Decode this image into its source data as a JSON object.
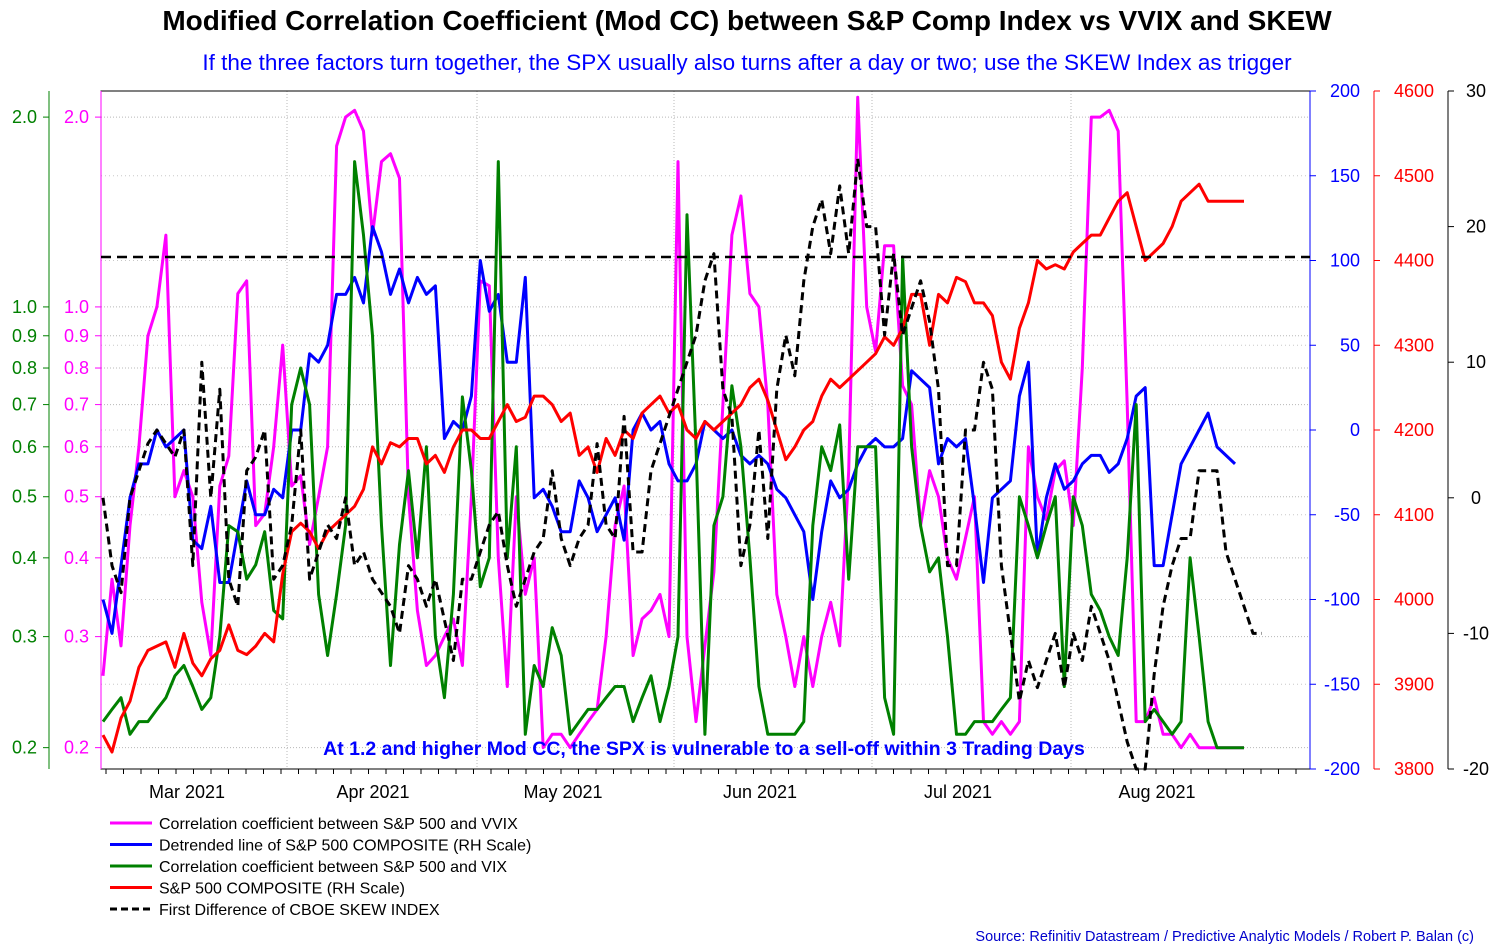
{
  "chart_data": {
    "type": "line",
    "title": "Modified Correlation Coefficient (Mod CC) between S&P Comp Index vs VVIX and SKEW",
    "subtitle": "If the three factors turn together, the SPX usually also turns after a day or two; use the SKEW Index as trigger",
    "annotation": "At 1.2 and higher Mod CC, the SPX is vulnerable to a sell-off within 3 Trading Days",
    "source": "Source: Refinitiv Datastream / Predictive Analytic Models / Robert P. Balan (c)",
    "x_labels": [
      "Mar 2021",
      "Apr 2021",
      "May 2021",
      "Jun 2021",
      "Jul 2021",
      "Aug 2021"
    ],
    "n_points": 128,
    "threshold": {
      "value": 1.2,
      "axis": "corr",
      "style": "dashed",
      "color": "#000000"
    },
    "axes": {
      "corr_green": {
        "side": "left",
        "scale": "log",
        "range": [
          0.185,
          2.2
        ],
        "color": "#008000",
        "ticks": [
          {
            "value": 2.0,
            "label": "2.0"
          },
          {
            "value": 1.0,
            "label": "1.0"
          },
          {
            "value": 0.9,
            "label": "0.9"
          },
          {
            "value": 0.8,
            "label": "0.8"
          },
          {
            "value": 0.7,
            "label": "0.7"
          },
          {
            "value": 0.6,
            "label": "0.6"
          },
          {
            "value": 0.5,
            "label": "0.5"
          },
          {
            "value": 0.4,
            "label": "0.4"
          },
          {
            "value": 0.3,
            "label": "0.3"
          },
          {
            "value": 0.2,
            "label": "0.2"
          }
        ]
      },
      "corr_magenta": {
        "side": "left",
        "scale": "log",
        "range": [
          0.185,
          2.2
        ],
        "color": "#ff00ff",
        "ticks": [
          {
            "value": 2.0,
            "label": "2.0"
          },
          {
            "value": 1.0,
            "label": "1.0"
          },
          {
            "value": 0.9,
            "label": "0.9"
          },
          {
            "value": 0.8,
            "label": "0.8"
          },
          {
            "value": 0.7,
            "label": "0.7"
          },
          {
            "value": 0.6,
            "label": "0.6"
          },
          {
            "value": 0.5,
            "label": "0.5"
          },
          {
            "value": 0.4,
            "label": "0.4"
          },
          {
            "value": 0.3,
            "label": "0.3"
          },
          {
            "value": 0.2,
            "label": "0.2"
          }
        ]
      },
      "detrended": {
        "side": "right",
        "scale": "linear",
        "range": [
          -200,
          200
        ],
        "color": "#0000ff",
        "ticks": [
          {
            "value": 200,
            "label": "200"
          },
          {
            "value": 150,
            "label": "150"
          },
          {
            "value": 100,
            "label": "100"
          },
          {
            "value": 50,
            "label": "50"
          },
          {
            "value": 0,
            "label": "0"
          },
          {
            "value": -50,
            "label": "-50"
          },
          {
            "value": -100,
            "label": "-100"
          },
          {
            "value": -150,
            "label": "-150"
          },
          {
            "value": -200,
            "label": "-200"
          }
        ]
      },
      "spx": {
        "side": "right",
        "scale": "linear",
        "range": [
          3800,
          4600
        ],
        "color": "#ff0000",
        "ticks": [
          {
            "value": 4600,
            "label": "4600"
          },
          {
            "value": 4500,
            "label": "4500"
          },
          {
            "value": 4400,
            "label": "4400"
          },
          {
            "value": 4300,
            "label": "4300"
          },
          {
            "value": 4200,
            "label": "4200"
          },
          {
            "value": 4100,
            "label": "4100"
          },
          {
            "value": 4000,
            "label": "4000"
          },
          {
            "value": 3900,
            "label": "3900"
          },
          {
            "value": 3800,
            "label": "3800"
          }
        ]
      },
      "skew_diff": {
        "side": "right",
        "scale": "linear",
        "range": [
          -20,
          30
        ],
        "color": "#000000",
        "ticks": [
          {
            "value": 30,
            "label": "30"
          },
          {
            "value": 20,
            "label": "20"
          },
          {
            "value": 10,
            "label": "10"
          },
          {
            "value": 0,
            "label": "0"
          },
          {
            "value": -10,
            "label": "-10"
          },
          {
            "value": -20,
            "label": "-20"
          }
        ]
      }
    },
    "series": [
      {
        "name": "Correlation coefficient between S&P 500 and VVIX",
        "axis": "corr_magenta",
        "color": "#ff00ff",
        "dashed": false,
        "values": [
          0.26,
          0.37,
          0.29,
          0.45,
          0.6,
          0.9,
          1.0,
          1.3,
          0.5,
          0.55,
          0.5,
          0.34,
          0.28,
          0.52,
          0.58,
          1.05,
          1.1,
          0.45,
          0.47,
          0.6,
          0.87,
          0.52,
          0.54,
          0.42,
          0.5,
          0.6,
          1.8,
          2.0,
          2.05,
          1.9,
          1.3,
          1.7,
          1.75,
          1.6,
          0.5,
          0.33,
          0.27,
          0.28,
          0.3,
          0.32,
          0.27,
          0.5,
          1.1,
          1.08,
          0.4,
          0.25,
          0.5,
          0.35,
          0.4,
          0.2,
          0.21,
          0.21,
          0.2,
          0.21,
          0.22,
          0.23,
          0.3,
          0.45,
          0.52,
          0.28,
          0.32,
          0.33,
          0.35,
          0.3,
          1.7,
          0.3,
          0.22,
          0.29,
          0.38,
          0.7,
          1.3,
          1.5,
          1.05,
          1.0,
          0.7,
          0.35,
          0.3,
          0.25,
          0.3,
          0.25,
          0.3,
          0.34,
          0.29,
          0.55,
          2.15,
          1.0,
          0.85,
          1.25,
          1.25,
          0.75,
          0.7,
          0.45,
          0.55,
          0.5,
          0.4,
          0.37,
          0.43,
          0.5,
          0.22,
          0.21,
          0.22,
          0.21,
          0.22,
          0.6,
          0.5,
          0.46,
          0.55,
          0.57,
          0.45,
          0.8,
          2.0,
          2.0,
          2.05,
          1.9,
          0.7,
          0.22,
          0.22,
          0.24,
          0.21,
          0.21,
          0.2,
          0.21,
          0.2,
          0.2,
          0.2,
          0.2,
          0.2,
          0.2
        ]
      },
      {
        "name": "Detrended line of S&P 500 COMPOSITE (RH Scale)",
        "axis": "detrended",
        "color": "#0000ff",
        "dashed": false,
        "values": [
          -100,
          -120,
          -80,
          -40,
          -20,
          -20,
          0,
          -10,
          -5,
          0,
          -65,
          -70,
          -45,
          -90,
          -90,
          -60,
          -30,
          -50,
          -50,
          -35,
          -40,
          0,
          0,
          45,
          40,
          50,
          80,
          80,
          90,
          75,
          120,
          105,
          80,
          95,
          75,
          90,
          80,
          85,
          -5,
          5,
          0,
          20,
          100,
          70,
          80,
          40,
          40,
          90,
          -40,
          -35,
          -45,
          -60,
          -60,
          -30,
          -40,
          -60,
          -50,
          -40,
          -65,
          0,
          10,
          0,
          5,
          -20,
          -30,
          -30,
          -20,
          5,
          0,
          -5,
          0,
          -15,
          -20,
          -15,
          -20,
          -35,
          -40,
          -50,
          -60,
          -100,
          -60,
          -30,
          -40,
          -35,
          -20,
          -10,
          -5,
          -10,
          -10,
          -5,
          35,
          30,
          25,
          -20,
          -5,
          -10,
          -5,
          -45,
          -90,
          -40,
          -35,
          -30,
          20,
          40,
          -75,
          -40,
          -20,
          -35,
          -30,
          -20,
          -15,
          -15,
          -25,
          -20,
          -5,
          20,
          25,
          -80,
          -80,
          -50,
          -20,
          -10,
          0,
          10,
          -10,
          -15,
          -20
        ]
      },
      {
        "name": "Correlation coefficient between S&P 500 and VIX",
        "axis": "corr_green",
        "color": "#008000",
        "dashed": false,
        "values": [
          0.22,
          0.23,
          0.24,
          0.21,
          0.22,
          0.22,
          0.23,
          0.24,
          0.26,
          0.27,
          0.25,
          0.23,
          0.24,
          0.3,
          0.45,
          0.44,
          0.37,
          0.39,
          0.44,
          0.33,
          0.32,
          0.7,
          0.8,
          0.7,
          0.35,
          0.28,
          0.35,
          0.45,
          1.7,
          1.3,
          0.9,
          0.45,
          0.27,
          0.42,
          0.55,
          0.4,
          0.6,
          0.3,
          0.24,
          0.35,
          0.72,
          0.55,
          0.36,
          0.4,
          1.7,
          0.4,
          0.6,
          0.21,
          0.27,
          0.25,
          0.31,
          0.28,
          0.21,
          0.22,
          0.23,
          0.23,
          0.24,
          0.25,
          0.25,
          0.22,
          0.24,
          0.26,
          0.22,
          0.25,
          0.3,
          1.4,
          0.6,
          0.21,
          0.45,
          0.5,
          0.75,
          0.6,
          0.4,
          0.25,
          0.21,
          0.21,
          0.21,
          0.21,
          0.22,
          0.45,
          0.6,
          0.55,
          0.65,
          0.37,
          0.6,
          0.6,
          0.6,
          0.24,
          0.21,
          1.2,
          0.6,
          0.45,
          0.38,
          0.4,
          0.3,
          0.21,
          0.21,
          0.22,
          0.22,
          0.22,
          0.23,
          0.24,
          0.5,
          0.45,
          0.4,
          0.45,
          0.5,
          0.25,
          0.5,
          0.45,
          0.35,
          0.33,
          0.3,
          0.28,
          0.4,
          0.7,
          0.22,
          0.23,
          0.22,
          0.21,
          0.22,
          0.4,
          0.3,
          0.22,
          0.2,
          0.2,
          0.2,
          0.2
        ]
      },
      {
        "name": "S&P 500 COMPOSITE (RH Scale)",
        "axis": "spx",
        "color": "#ff0000",
        "dashed": false,
        "values": [
          3840,
          3820,
          3860,
          3880,
          3920,
          3940,
          3945,
          3950,
          3920,
          3960,
          3925,
          3910,
          3930,
          3940,
          3970,
          3940,
          3935,
          3945,
          3960,
          3950,
          4030,
          4080,
          4090,
          4080,
          4060,
          4080,
          4090,
          4100,
          4110,
          4130,
          4180,
          4160,
          4185,
          4180,
          4190,
          4190,
          4160,
          4170,
          4150,
          4180,
          4200,
          4200,
          4190,
          4190,
          4210,
          4230,
          4210,
          4215,
          4240,
          4240,
          4230,
          4210,
          4220,
          4170,
          4180,
          4150,
          4190,
          4170,
          4200,
          4190,
          4220,
          4230,
          4240,
          4220,
          4230,
          4200,
          4190,
          4210,
          4200,
          4210,
          4220,
          4230,
          4250,
          4260,
          4235,
          4200,
          4165,
          4180,
          4200,
          4210,
          4240,
          4260,
          4250,
          4260,
          4270,
          4280,
          4290,
          4310,
          4300,
          4320,
          4360,
          4360,
          4300,
          4360,
          4350,
          4380,
          4375,
          4350,
          4350,
          4335,
          4280,
          4260,
          4320,
          4350,
          4400,
          4390,
          4395,
          4390,
          4410,
          4420,
          4430,
          4430,
          4450,
          4470,
          4480,
          4440,
          4400,
          4410,
          4420,
          4440,
          4470,
          4480,
          4490,
          4470,
          4470,
          4470,
          4470,
          4470
        ]
      },
      {
        "name": "First Difference of CBOE SKEW INDEX",
        "axis": "skew_diff",
        "color": "#000000",
        "dashed": true,
        "values": [
          0,
          -5,
          -7,
          0,
          2,
          4,
          5,
          4,
          3,
          5,
          -5,
          10,
          0,
          8,
          -6,
          -8,
          2,
          3,
          5,
          -6,
          -5,
          -2,
          5,
          -6,
          -4,
          -2,
          -3,
          0,
          -5,
          -4,
          -6,
          -7,
          -8,
          -10,
          -5,
          -6,
          -8,
          -6,
          -9,
          -12,
          -6,
          -6,
          -4,
          -2,
          -1,
          -5,
          -8,
          -6,
          -4,
          -3,
          2,
          -3,
          -5,
          -3,
          -2,
          4,
          -2,
          -3,
          6,
          -4,
          -4,
          2,
          4,
          6,
          8,
          10,
          12,
          16,
          18,
          8,
          6,
          -5,
          -2,
          5,
          -3,
          8,
          12,
          9,
          16,
          20,
          22,
          18,
          23,
          18,
          25,
          20,
          20,
          12,
          18,
          12,
          14,
          16,
          13,
          8,
          -5,
          -5,
          5,
          5,
          10,
          8,
          -5,
          -10,
          -15,
          -12,
          -14,
          -12,
          -10,
          -14,
          -10,
          -12,
          -8,
          -10,
          -12,
          -15,
          -18,
          -20,
          -20,
          -13,
          -8,
          -5,
          -3,
          -3,
          2,
          2,
          2,
          -4,
          -6,
          -8,
          -10,
          -10
        ]
      }
    ],
    "legend_position": "bottom-left"
  }
}
